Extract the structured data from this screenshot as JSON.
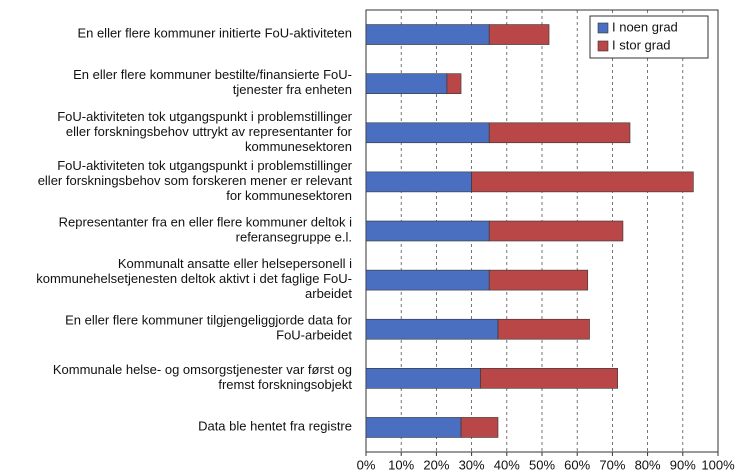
{
  "chart_data": {
    "type": "stacked-barh",
    "categories": [
      [
        "En eller flere kommuner initierte FoU-aktiviteten"
      ],
      [
        "En eller flere kommuner bestilte/finansierte FoU-",
        "tjenester fra enheten"
      ],
      [
        "FoU-aktiviteten tok utgangspunkt i problemstillinger",
        "eller forskningsbehov uttrykt av representanter for",
        "kommunesektoren"
      ],
      [
        "FoU-aktiviteten tok utgangspunkt i problemstillinger",
        "eller forskningsbehov som forskeren mener er relevant",
        "for kommunesektoren"
      ],
      [
        "Representanter fra en eller flere kommuner deltok i",
        "referansegruppe e.l."
      ],
      [
        "Kommunalt ansatte eller helsepersonell i",
        "kommunehelsetjenesten deltok aktivt i det faglige FoU-",
        "arbeidet"
      ],
      [
        "En eller flere kommuner tilgjengeliggjorde data for",
        "FoU-arbeidet"
      ],
      [
        "Kommunale helse- og omsorgstjenester var først og",
        "fremst forskningsobjekt"
      ],
      [
        "Data ble hentet fra registre"
      ]
    ],
    "series": [
      {
        "name": "I noen grad",
        "color": "#4a6fc0",
        "values": [
          35,
          23,
          35,
          30,
          35,
          35,
          37.5,
          32.5,
          27
        ]
      },
      {
        "name": "I stor grad",
        "color": "#b94747",
        "values": [
          17,
          4,
          40,
          63,
          38,
          28,
          26,
          39,
          10.5
        ]
      }
    ],
    "xlim": [
      0,
      100
    ],
    "xticks": [
      {
        "value": 0,
        "label": "0%"
      },
      {
        "value": 10,
        "label": "10%"
      },
      {
        "value": 20,
        "label": "20%"
      },
      {
        "value": 30,
        "label": "30%"
      },
      {
        "value": 40,
        "label": "40%"
      },
      {
        "value": 50,
        "label": "50%"
      },
      {
        "value": 60,
        "label": "60%"
      },
      {
        "value": 70,
        "label": "70%"
      },
      {
        "value": 80,
        "label": "80%"
      },
      {
        "value": 90,
        "label": "90%"
      },
      {
        "value": 100,
        "label": "100%"
      }
    ],
    "grid": true,
    "legend": "top-right"
  }
}
